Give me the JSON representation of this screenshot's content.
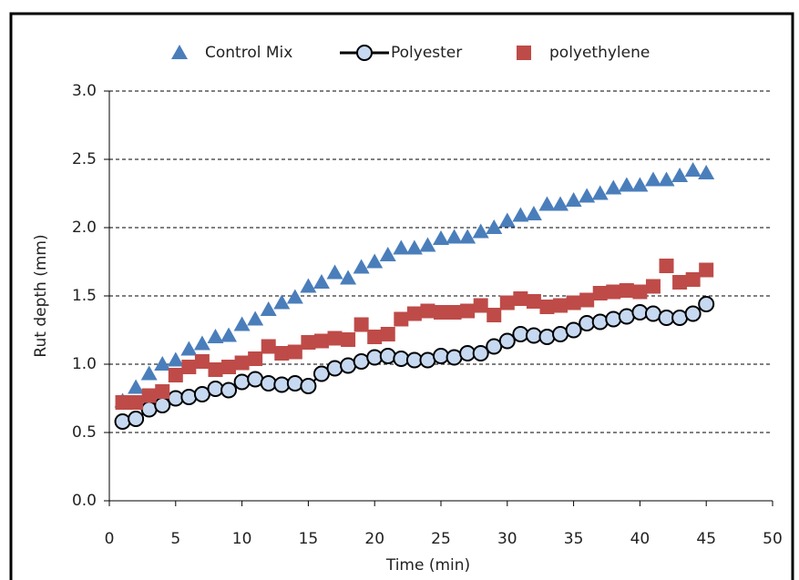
{
  "chart_data": {
    "type": "scatter",
    "x_label": "Time (min)",
    "y_label": "Rut depth (mm)",
    "x": [
      1,
      2,
      3,
      4,
      5,
      6,
      7,
      8,
      9,
      10,
      11,
      12,
      13,
      14,
      15,
      16,
      17,
      18,
      19,
      20,
      21,
      22,
      23,
      24,
      25,
      26,
      27,
      28,
      29,
      30,
      31,
      32,
      33,
      34,
      35,
      36,
      37,
      38,
      39,
      40,
      41,
      42,
      43,
      44,
      45
    ],
    "series": [
      {
        "name": "Control Mix",
        "color": "#4a7ebb",
        "marker": "triangle",
        "line": false,
        "values": [
          0.73,
          0.83,
          0.93,
          1.0,
          1.03,
          1.11,
          1.15,
          1.2,
          1.21,
          1.29,
          1.33,
          1.4,
          1.45,
          1.49,
          1.57,
          1.6,
          1.67,
          1.63,
          1.71,
          1.75,
          1.8,
          1.85,
          1.85,
          1.87,
          1.92,
          1.93,
          1.93,
          1.97,
          2.0,
          2.05,
          2.09,
          2.1,
          2.17,
          2.17,
          2.2,
          2.23,
          2.25,
          2.29,
          2.31,
          2.31,
          2.35,
          2.35,
          2.38,
          2.42,
          2.4
        ]
      },
      {
        "name": "Polyester",
        "color": "#c6d9f1",
        "marker": "circle",
        "line": true,
        "values": [
          0.58,
          0.6,
          0.67,
          0.7,
          0.75,
          0.76,
          0.78,
          0.82,
          0.81,
          0.87,
          0.89,
          0.86,
          0.85,
          0.86,
          0.84,
          0.93,
          0.97,
          0.99,
          1.02,
          1.05,
          1.06,
          1.04,
          1.03,
          1.03,
          1.06,
          1.05,
          1.08,
          1.08,
          1.13,
          1.17,
          1.22,
          1.21,
          1.2,
          1.22,
          1.25,
          1.3,
          1.31,
          1.33,
          1.35,
          1.38,
          1.37,
          1.34,
          1.34,
          1.37,
          1.44
        ]
      },
      {
        "name": "polyethylene",
        "color": "#be4b48",
        "marker": "square",
        "line": false,
        "values": [
          0.72,
          0.72,
          0.77,
          0.8,
          0.92,
          0.98,
          1.02,
          0.96,
          0.98,
          1.01,
          1.04,
          1.13,
          1.08,
          1.09,
          1.16,
          1.17,
          1.19,
          1.18,
          1.29,
          1.2,
          1.22,
          1.33,
          1.37,
          1.39,
          1.38,
          1.38,
          1.39,
          1.43,
          1.36,
          1.45,
          1.48,
          1.46,
          1.42,
          1.43,
          1.45,
          1.47,
          1.52,
          1.53,
          1.54,
          1.53,
          1.57,
          1.72,
          1.6,
          1.62,
          1.69
        ]
      }
    ],
    "xlim": [
      0,
      50
    ],
    "xticks": [
      0,
      5,
      10,
      15,
      20,
      25,
      30,
      35,
      40,
      45,
      50
    ],
    "ylim": [
      0,
      3
    ],
    "yticks": [
      {
        "value": 0,
        "label": "0.0"
      },
      {
        "value": 0.5,
        "label": "0.5"
      },
      {
        "value": 1,
        "label": "1.0"
      },
      {
        "value": 1.5,
        "label": "1.5"
      },
      {
        "value": 2,
        "label": "2.0"
      },
      {
        "value": 2.5,
        "label": "2.5"
      },
      {
        "value": 3,
        "label": "3.0"
      }
    ],
    "grid": true,
    "legend": "top"
  }
}
